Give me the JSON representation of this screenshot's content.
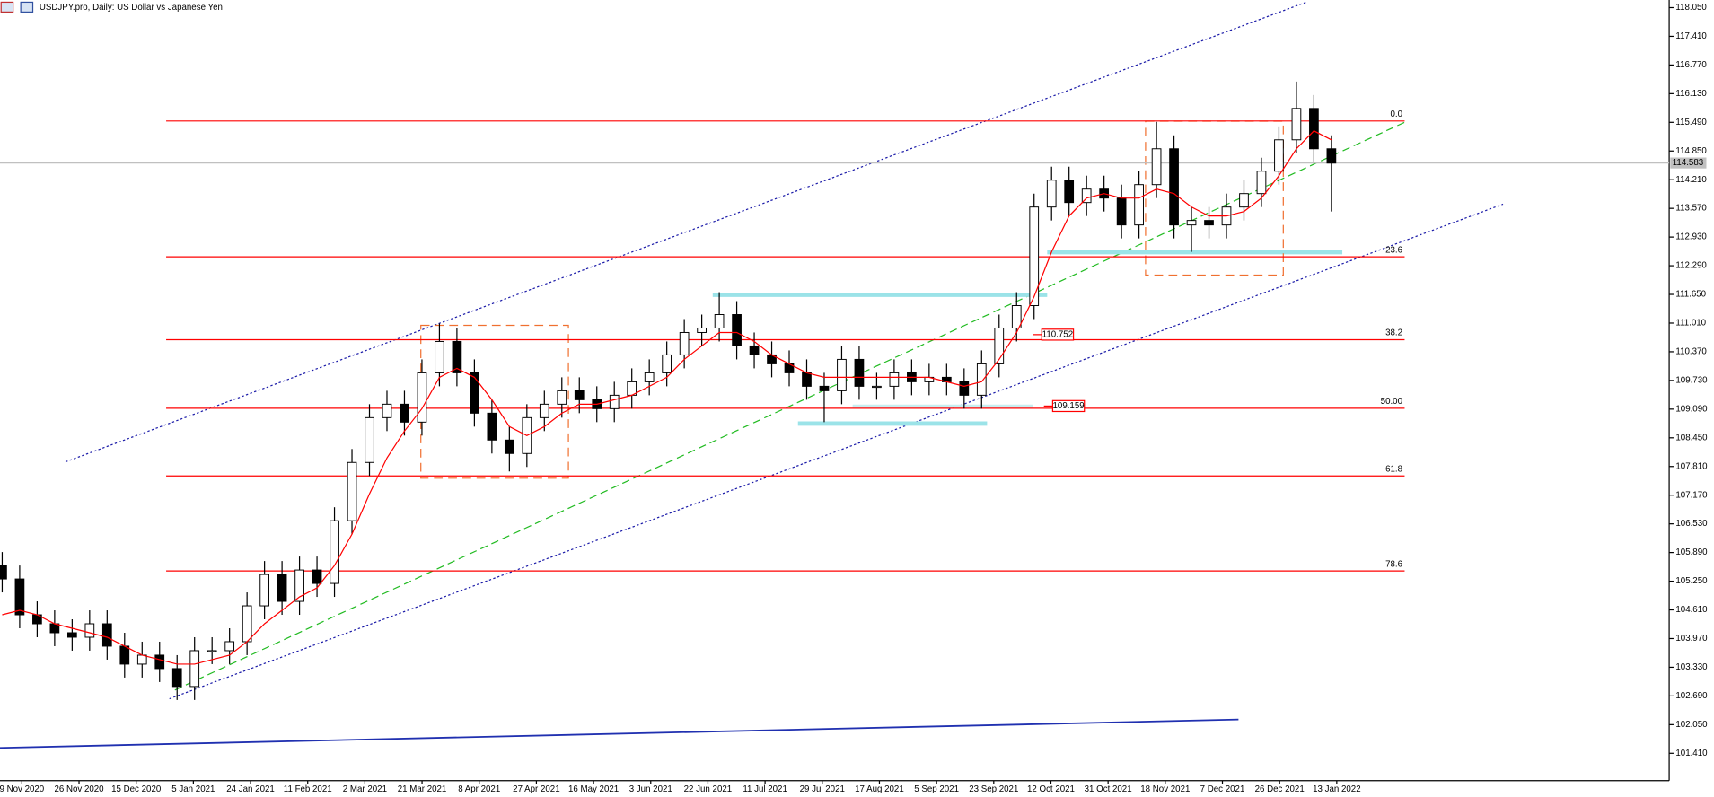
{
  "chart_data": {
    "type": "candlestick",
    "title": "USDJPY.pro, Daily:  US Dollar vs Japanese Yen",
    "ylim": [
      100.8,
      118.22
    ],
    "yticks": [
      {
        "value": 101.41,
        "label": "101.410"
      },
      {
        "value": 102.05,
        "label": "102.050"
      },
      {
        "value": 102.69,
        "label": "102.690"
      },
      {
        "value": 103.33,
        "label": "103.330"
      },
      {
        "value": 103.97,
        "label": "103.970"
      },
      {
        "value": 104.61,
        "label": "104.610"
      },
      {
        "value": 105.25,
        "label": "105.250"
      },
      {
        "value": 105.89,
        "label": "105.890"
      },
      {
        "value": 106.53,
        "label": "106.530"
      },
      {
        "value": 107.17,
        "label": "107.170"
      },
      {
        "value": 107.81,
        "label": "107.810"
      },
      {
        "value": 108.45,
        "label": "108.450"
      },
      {
        "value": 109.09,
        "label": "109.090"
      },
      {
        "value": 109.73,
        "label": "109.730"
      },
      {
        "value": 110.37,
        "label": "110.370"
      },
      {
        "value": 111.01,
        "label": "111.010"
      },
      {
        "value": 111.65,
        "label": "111.650"
      },
      {
        "value": 112.29,
        "label": "112.290"
      },
      {
        "value": 112.93,
        "label": "112.930"
      },
      {
        "value": 113.57,
        "label": "113.570"
      },
      {
        "value": 114.21,
        "label": "114.210"
      },
      {
        "value": 114.85,
        "label": "114.850"
      },
      {
        "value": 115.49,
        "label": "115.490"
      },
      {
        "value": 116.13,
        "label": "116.130"
      },
      {
        "value": 116.77,
        "label": "116.770"
      },
      {
        "value": 117.41,
        "label": "117.410"
      },
      {
        "value": 118.05,
        "label": "118.050"
      }
    ],
    "x_labels": [
      "9 Nov 2020",
      "26 Nov 2020",
      "15 Dec 2020",
      "5 Jan 2021",
      "24 Jan 2021",
      "11 Feb 2021",
      "2 Mar 2021",
      "21 Mar 2021",
      "8 Apr 2021",
      "27 Apr 2021",
      "16 May 2021",
      "3 Jun 2021",
      "22 Jun 2021",
      "11 Jul 2021",
      "29 Jul 2021",
      "17 Aug 2021",
      "5 Sep 2021",
      "23 Sep 2021",
      "12 Oct 2021",
      "31 Oct 2021",
      "18 Nov 2021",
      "7 Dec 2021",
      "26 Dec 2021",
      "13 Jan 2022"
    ],
    "open": [
      105.6,
      105.3,
      104.5,
      104.3,
      104.1,
      104.0,
      104.3,
      103.8,
      103.4,
      103.6,
      103.3,
      102.9,
      103.7,
      103.7,
      103.9,
      104.7,
      105.4,
      104.8,
      105.5,
      105.2,
      106.6,
      107.9,
      108.9,
      109.2,
      108.8,
      109.9,
      110.6,
      109.9,
      109.0,
      108.4,
      108.1,
      108.9,
      109.2,
      109.5,
      109.3,
      109.1,
      109.4,
      109.7,
      109.9,
      110.3,
      110.8,
      110.9,
      111.2,
      110.5,
      110.3,
      110.1,
      109.9,
      109.6,
      109.5,
      110.2,
      109.6,
      109.6,
      109.9,
      109.7,
      109.8,
      109.7,
      109.4,
      110.1,
      110.9,
      111.4,
      113.6,
      114.2,
      113.7,
      114.0,
      113.8,
      113.2,
      114.1,
      114.9,
      113.2,
      113.3,
      113.2,
      113.6,
      113.9,
      114.4,
      115.1,
      115.8,
      114.9
    ],
    "high": [
      105.9,
      105.6,
      104.8,
      104.6,
      104.4,
      104.6,
      104.6,
      104.1,
      103.9,
      103.9,
      103.6,
      104.0,
      104.0,
      104.2,
      105.0,
      105.7,
      105.7,
      105.8,
      105.8,
      106.9,
      108.2,
      109.2,
      109.5,
      109.5,
      110.2,
      111.0,
      110.9,
      110.2,
      109.3,
      108.7,
      109.2,
      109.5,
      109.8,
      109.8,
      109.6,
      109.7,
      110.0,
      110.2,
      110.6,
      111.1,
      111.2,
      111.7,
      111.5,
      110.8,
      110.6,
      110.4,
      110.2,
      109.9,
      110.5,
      110.5,
      109.9,
      110.2,
      110.2,
      110.1,
      110.1,
      110.0,
      110.4,
      111.2,
      111.7,
      113.9,
      114.5,
      114.5,
      114.3,
      114.3,
      114.1,
      114.4,
      115.5,
      115.2,
      113.6,
      113.6,
      113.9,
      114.2,
      114.7,
      115.4,
      116.4,
      116.1,
      115.2
    ],
    "low": [
      105.0,
      104.2,
      104.0,
      103.8,
      103.7,
      103.7,
      103.5,
      103.1,
      103.1,
      103.0,
      102.6,
      102.6,
      103.4,
      103.4,
      103.6,
      104.4,
      104.5,
      104.5,
      104.9,
      104.9,
      106.3,
      107.6,
      108.6,
      108.5,
      108.5,
      109.6,
      109.6,
      108.7,
      108.1,
      107.7,
      107.8,
      108.6,
      108.9,
      109.0,
      108.8,
      108.8,
      109.1,
      109.4,
      109.6,
      110.0,
      110.5,
      110.6,
      110.2,
      110.0,
      109.8,
      109.6,
      109.3,
      108.8,
      109.2,
      109.3,
      109.3,
      109.3,
      109.4,
      109.4,
      109.4,
      109.1,
      109.1,
      109.8,
      110.6,
      111.1,
      113.3,
      113.4,
      113.4,
      113.5,
      112.9,
      112.9,
      113.8,
      112.9,
      112.6,
      112.9,
      112.9,
      113.3,
      113.6,
      114.1,
      114.8,
      114.6,
      113.5
    ],
    "close": [
      105.3,
      104.5,
      104.3,
      104.1,
      104.0,
      104.3,
      103.8,
      103.4,
      103.6,
      103.3,
      102.9,
      103.7,
      103.7,
      103.9,
      104.7,
      105.4,
      104.8,
      105.5,
      105.2,
      106.6,
      107.9,
      108.9,
      109.2,
      108.8,
      109.9,
      110.6,
      109.9,
      109.0,
      108.4,
      108.1,
      108.9,
      109.2,
      109.5,
      109.3,
      109.1,
      109.4,
      109.7,
      109.9,
      110.3,
      110.8,
      110.9,
      111.2,
      110.5,
      110.3,
      110.1,
      109.9,
      109.6,
      109.5,
      110.2,
      109.6,
      109.6,
      109.9,
      109.7,
      109.8,
      109.7,
      109.4,
      110.1,
      110.9,
      111.4,
      113.6,
      114.2,
      113.7,
      114.0,
      113.8,
      113.2,
      114.1,
      114.9,
      113.2,
      113.3,
      113.2,
      113.6,
      113.9,
      114.4,
      115.1,
      115.8,
      114.9,
      114.58
    ],
    "ma": {
      "color": "#ff0000",
      "values": [
        104.5,
        104.6,
        104.5,
        104.3,
        104.2,
        104.1,
        104.0,
        103.8,
        103.6,
        103.5,
        103.4,
        103.4,
        103.5,
        103.6,
        103.9,
        104.3,
        104.6,
        104.9,
        105.1,
        105.6,
        106.3,
        107.2,
        108.0,
        108.6,
        109.1,
        109.8,
        110.0,
        109.8,
        109.3,
        108.7,
        108.5,
        108.7,
        109.0,
        109.2,
        109.2,
        109.3,
        109.4,
        109.6,
        109.8,
        110.2,
        110.5,
        110.8,
        110.8,
        110.6,
        110.3,
        110.1,
        109.9,
        109.8,
        109.8,
        109.8,
        109.8,
        109.8,
        109.8,
        109.8,
        109.7,
        109.6,
        109.7,
        110.2,
        110.8,
        111.6,
        112.6,
        113.4,
        113.8,
        113.9,
        113.8,
        113.8,
        114.0,
        113.9,
        113.6,
        113.4,
        113.4,
        113.5,
        113.8,
        114.3,
        114.9,
        115.3,
        115.1
      ]
    },
    "fib_color": "#ff0000",
    "fib_levels": [
      {
        "ratio": {
          "value": 0,
          "label": "0.0"
        },
        "price": 115.52
      },
      {
        "ratio": 23.6,
        "price": 112.49
      },
      {
        "ratio": 38.2,
        "price": 110.64
      },
      {
        "ratio": {
          "value": 50,
          "label": "50.00"
        },
        "price": 109.11
      },
      {
        "ratio": 61.8,
        "price": 107.6
      },
      {
        "ratio": 78.6,
        "price": 105.48
      }
    ],
    "price_labels": [
      110.752,
      109.159
    ],
    "current_price": 114.583
  }
}
